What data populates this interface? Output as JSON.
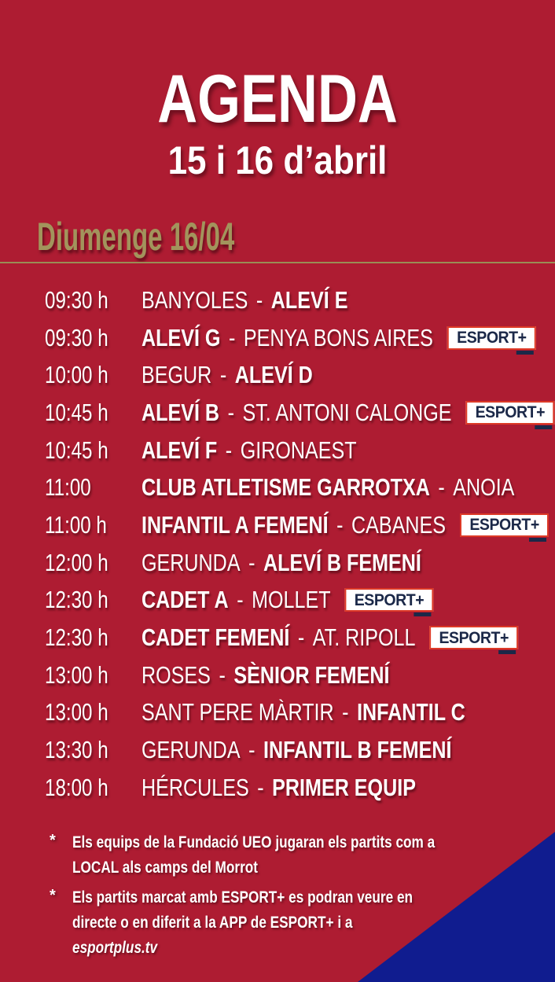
{
  "header": {
    "title": "AGENDA",
    "subtitle": "15 i 16 d’abril"
  },
  "section": {
    "day_label": "Diumenge 16/04"
  },
  "schedule": {
    "separator": "-",
    "badge_label": "ESPORT+",
    "rows": [
      {
        "time": "09:30 h",
        "home": "BANYOLES",
        "home_bold": false,
        "away": "ALEVÍ E",
        "away_bold": true,
        "badge": false
      },
      {
        "time": "09:30 h",
        "home": "ALEVÍ G",
        "home_bold": true,
        "away": "PENYA BONS AIRES",
        "away_bold": false,
        "badge": true
      },
      {
        "time": "10:00 h",
        "home": "BEGUR",
        "home_bold": false,
        "away": "ALEVÍ D",
        "away_bold": true,
        "badge": false
      },
      {
        "time": "10:45 h",
        "home": "ALEVÍ B",
        "home_bold": true,
        "away": "ST. ANTONI CALONGE",
        "away_bold": false,
        "badge": true
      },
      {
        "time": "10:45 h",
        "home": "ALEVÍ F",
        "home_bold": true,
        "away": "GIRONAEST",
        "away_bold": false,
        "badge": false
      },
      {
        "time": "11:00",
        "home": "CLUB ATLETISME GARROTXA",
        "home_bold": true,
        "away": "ANOIA",
        "away_bold": false,
        "badge": false
      },
      {
        "time": "11:00 h",
        "home": "INFANTIL A FEMENÍ",
        "home_bold": true,
        "away": "CABANES",
        "away_bold": false,
        "badge": true
      },
      {
        "time": "12:00 h",
        "home": "GERUNDA",
        "home_bold": false,
        "away": "ALEVÍ B FEMENÍ",
        "away_bold": true,
        "badge": false
      },
      {
        "time": "12:30 h",
        "home": "CADET A",
        "home_bold": true,
        "away": "MOLLET",
        "away_bold": false,
        "badge": true
      },
      {
        "time": "12:30 h",
        "home": "CADET FEMENÍ",
        "home_bold": true,
        "away": "AT. RIPOLL",
        "away_bold": false,
        "badge": true
      },
      {
        "time": "13:00 h",
        "home": "ROSES",
        "home_bold": false,
        "away": "SÈNIOR FEMENÍ",
        "away_bold": true,
        "badge": false
      },
      {
        "time": "13:00 h",
        "home": "SANT PERE MÀRTIR",
        "home_bold": false,
        "away": "INFANTIL C",
        "away_bold": true,
        "badge": false
      },
      {
        "time": "13:30 h",
        "home": "GERUNDA",
        "home_bold": false,
        "away": "INFANTIL B FEMENÍ",
        "away_bold": true,
        "badge": false
      },
      {
        "time": "18:00 h",
        "home": "HÉRCULES",
        "home_bold": false,
        "away": "PRIMER EQUIP",
        "away_bold": true,
        "badge": false
      }
    ]
  },
  "notes": [
    {
      "marker": "*",
      "lines": [
        "Els equips de la Fundació UEO jugaran els partits com a",
        "LOCAL als camps del Morrot"
      ],
      "italic_last_line": false
    },
    {
      "marker": "*",
      "lines": [
        "Els partits marcat amb ESPORT+ es podran veure en",
        "directe o en diferit a la APP de ESPORT+  i  a",
        "esportplus.tv"
      ],
      "italic_last_line": true
    }
  ],
  "colors": {
    "background": "#ae1c32",
    "gold_text": "#a2945c",
    "gold_line": "#9a8d55",
    "text_white": "#ffffff",
    "badge_navy": "#1b2848",
    "badge_border": "#dd3927",
    "corner_blue": "#101c8f"
  }
}
